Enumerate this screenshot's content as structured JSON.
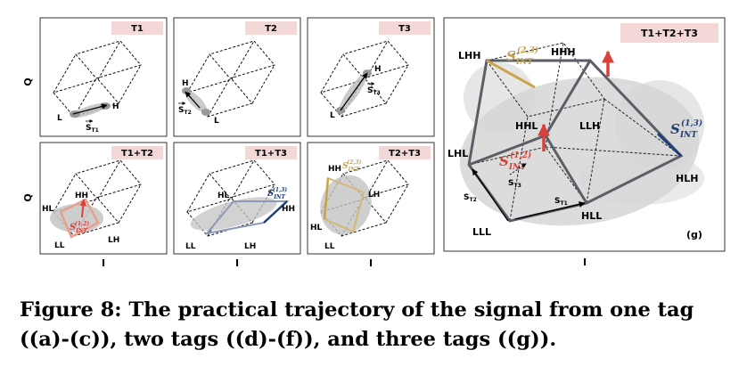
{
  "panels": {
    "a": {
      "title": "T1",
      "vector": "S",
      "vector_sub": "T1",
      "labels": [
        "L",
        "H"
      ]
    },
    "b": {
      "title": "T2",
      "vector": "S",
      "vector_sub": "T2",
      "labels": [
        "H",
        "L"
      ]
    },
    "c": {
      "title": "T3",
      "vector": "S",
      "vector_sub": "T3",
      "labels": [
        "H",
        "L"
      ]
    },
    "d": {
      "title": "T1+T2",
      "vector": "S",
      "vector_sub": "INT",
      "vector_sup": "(1,2)",
      "labels": [
        "HH",
        "HL",
        "LL",
        "LH"
      ]
    },
    "e": {
      "title": "T1+T3",
      "vector": "S",
      "vector_sub": "INT",
      "vector_sup": "(1,3)",
      "labels": [
        "HL",
        "HH",
        "LL",
        "LH"
      ]
    },
    "f": {
      "title": "T2+T3",
      "vector": "S",
      "vector_sub": "INT",
      "vector_sup": "(2,3)",
      "labels": [
        "HH",
        "LH",
        "HL",
        "LL"
      ]
    },
    "g": {
      "title": "T1+T2+T3",
      "panel_id": "(g)",
      "labels": [
        "LHH",
        "HHH",
        "HHL",
        "LLH",
        "LHL",
        "HLH",
        "HLL",
        "LLL"
      ],
      "vec_2_3": {
        "sup": "(2,3)",
        "sub": "INT"
      },
      "vec_1_3": {
        "sup": "(1,3)",
        "sub": "INT"
      },
      "vec_1_2": {
        "sup": "(1,2)",
        "sub": "INT"
      },
      "vec_t1": "T1",
      "vec_t2": "T2",
      "vec_t3": "T3"
    }
  },
  "axis": {
    "q_label": "Q",
    "i_label": "I"
  },
  "colors": {
    "title_fill": "#f4d7d7",
    "red": "#d9413a",
    "navy": "#1f3f78",
    "gold": "#c9a24a",
    "gray_path": "#5a5e66",
    "scatter": "#c4c4c4"
  },
  "caption": {
    "line1": "Figure 8: The practical trajectory of the signal from one tag",
    "line2": "((a)-(c)), two tags ((d)-(f)), and three tags ((g))."
  }
}
